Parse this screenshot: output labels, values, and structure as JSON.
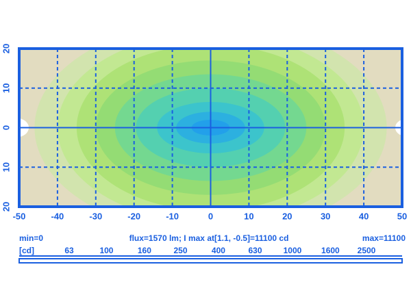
{
  "chart_data": {
    "type": "contour",
    "xlim": [
      -50,
      50
    ],
    "xticks": [
      -50,
      -40,
      -30,
      -20,
      -10,
      0,
      10,
      20,
      30,
      40,
      50
    ],
    "ylim": [
      -20,
      20
    ],
    "yticks": [
      {
        "value": -20,
        "label": "20"
      },
      {
        "value": -10,
        "label": "10"
      },
      0,
      10,
      20
    ],
    "grid": true,
    "axis_color": "#1a5fe0",
    "background_color": "#e2dcc0",
    "min_label": "min=0",
    "info": "flux=1570 lm; I max  at[1.1, -0.5]=11100 cd",
    "max_label": "max=11100",
    "colorbar": {
      "label": "[cd]",
      "log": true,
      "ticks": [
        63,
        100,
        160,
        250,
        400,
        630,
        1000,
        1600,
        2500
      ],
      "colors": [
        "#d2e4ae",
        "#c2e892",
        "#aee276",
        "#94dc74",
        "#74d890",
        "#54d0b0",
        "#3cc4cc",
        "#2cb0e0",
        "#22a0ea"
      ]
    }
  }
}
